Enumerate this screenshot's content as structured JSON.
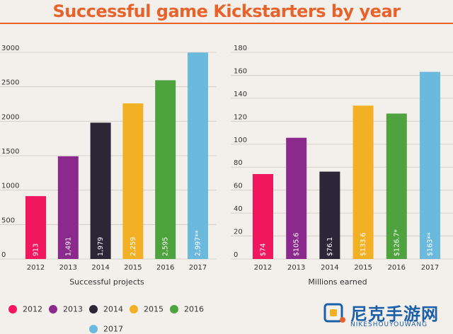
{
  "title": "Successful game Kickstarters by year",
  "colors": {
    "2012": "#f0175e",
    "2013": "#8b2a8c",
    "2014": "#2c2738",
    "2015": "#f2b125",
    "2016": "#4ea33f",
    "2017": "#6bb9dd",
    "title": "#e8632b"
  },
  "chart_data": [
    {
      "type": "bar",
      "categories": [
        "2012",
        "2013",
        "2014",
        "2015",
        "2016",
        "2017"
      ],
      "values": [
        913,
        1491,
        1979,
        2259,
        2595,
        2997
      ],
      "data_labels": [
        "913",
        "1,491",
        "1,979",
        "2,259",
        "2,595",
        "2,997**"
      ],
      "xlabel": "Successful projects",
      "ylabel": "",
      "ylim": [
        0,
        3000
      ],
      "yticks": [
        "0",
        "500",
        "1000",
        "1500",
        "2000",
        "2500",
        "3000"
      ],
      "grid": true
    },
    {
      "type": "bar",
      "categories": [
        "2012",
        "2013",
        "2014",
        "2015",
        "2016",
        "2017"
      ],
      "values": [
        74,
        105.6,
        76.1,
        133.6,
        126.7,
        163
      ],
      "data_labels": [
        "$74",
        "$105.6",
        "$76.1",
        "$133.6",
        "$126.7*",
        "$163**"
      ],
      "xlabel": "Millions earned",
      "ylabel": "",
      "ylim": [
        0,
        180
      ],
      "yticks": [
        "0",
        "20",
        "40",
        "60",
        "80",
        "100",
        "120",
        "140",
        "160",
        "180"
      ],
      "grid": true
    }
  ],
  "legend": {
    "placement": "bottom",
    "items": [
      "2012",
      "2013",
      "2014",
      "2015",
      "2016",
      "2017"
    ]
  },
  "watermark": {
    "main": "尼克手游网",
    "sub": "NIKESHOUYOUWANG"
  }
}
